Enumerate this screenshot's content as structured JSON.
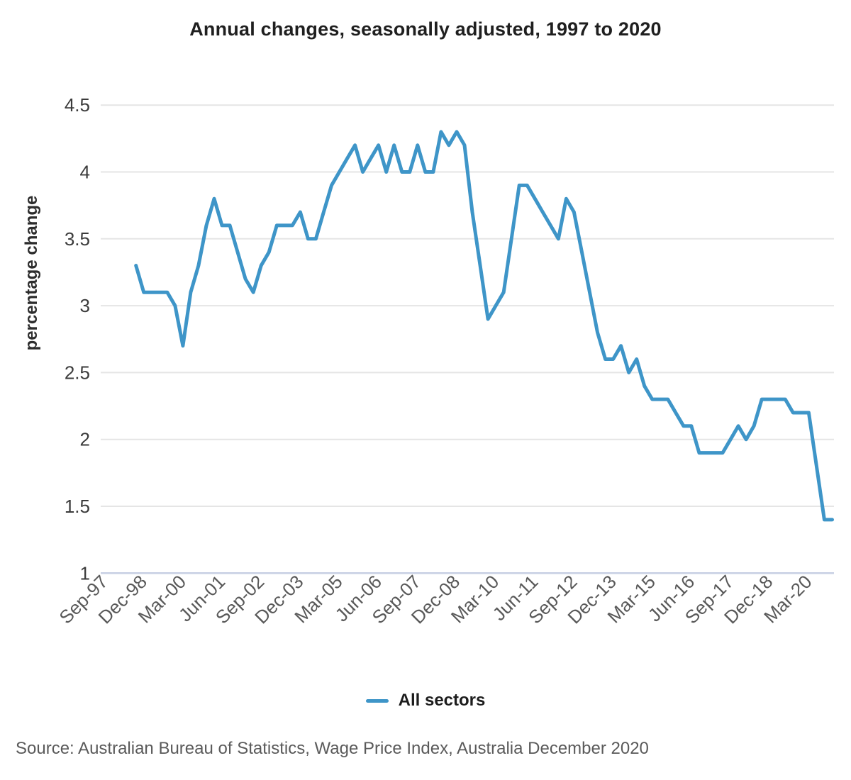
{
  "title": "Annual changes, seasonally adjusted, 1997 to 2020",
  "legend": {
    "label": "All sectors"
  },
  "source_note": "Source: Australian Bureau of Statistics, Wage Price Index, Australia December 2020",
  "y_axis": {
    "title": "percentage change",
    "ticks": [
      1,
      1.5,
      2,
      2.5,
      3,
      3.5,
      4,
      4.5
    ]
  },
  "x_axis": {
    "tick_labels": [
      "Sep-97",
      "Dec-98",
      "Mar-00",
      "Jun-01",
      "Sep-02",
      "Dec-03",
      "Mar-05",
      "Jun-06",
      "Sep-07",
      "Dec-08",
      "Mar-10",
      "Jun-11",
      "Sep-12",
      "Dec-13",
      "Mar-15",
      "Jun-16",
      "Sep-17",
      "Dec-18",
      "Mar-20"
    ]
  },
  "colors": {
    "line": "#3E95C8",
    "grid": "#e5e5e5",
    "axis_baseline": "#c7cfe3",
    "title_text": "#1f1f1f",
    "y_tick_text": "#3b3b3b",
    "x_tick_text": "#595959",
    "axis_title_text": "#2d2d2d",
    "source_text": "#5a5a5a"
  },
  "chart_data": {
    "type": "line",
    "title": "Annual changes, seasonally adjusted, 1997 to 2020",
    "xlabel": "",
    "ylabel": "percentage change",
    "ylim": [
      1,
      4.5
    ],
    "yticks": [
      1,
      1.5,
      2,
      2.5,
      3,
      3.5,
      4,
      4.5
    ],
    "xtick_labels": [
      "Sep-97",
      "Dec-98",
      "Mar-00",
      "Jun-01",
      "Sep-02",
      "Dec-03",
      "Mar-05",
      "Jun-06",
      "Sep-07",
      "Dec-08",
      "Mar-10",
      "Jun-11",
      "Sep-12",
      "Dec-13",
      "Mar-15",
      "Jun-16",
      "Sep-17",
      "Dec-18",
      "Mar-20"
    ],
    "grid": "horizontal",
    "legend_position": "bottom-center",
    "series": [
      {
        "name": "All sectors",
        "color": "#3E95C8",
        "x": [
          "Sep-98",
          "Dec-98",
          "Mar-99",
          "Jun-99",
          "Sep-99",
          "Dec-99",
          "Mar-00",
          "Jun-00",
          "Sep-00",
          "Dec-00",
          "Mar-01",
          "Jun-01",
          "Sep-01",
          "Dec-01",
          "Mar-02",
          "Jun-02",
          "Sep-02",
          "Dec-02",
          "Mar-03",
          "Jun-03",
          "Sep-03",
          "Dec-03",
          "Mar-04",
          "Jun-04",
          "Sep-04",
          "Dec-04",
          "Mar-05",
          "Jun-05",
          "Sep-05",
          "Dec-05",
          "Mar-06",
          "Jun-06",
          "Sep-06",
          "Dec-06",
          "Mar-07",
          "Jun-07",
          "Sep-07",
          "Dec-07",
          "Mar-08",
          "Jun-08",
          "Sep-08",
          "Dec-08",
          "Mar-09",
          "Jun-09",
          "Sep-09",
          "Dec-09",
          "Mar-10",
          "Jun-10",
          "Sep-10",
          "Dec-10",
          "Mar-11",
          "Jun-11",
          "Sep-11",
          "Dec-11",
          "Mar-12",
          "Jun-12",
          "Sep-12",
          "Dec-12",
          "Mar-13",
          "Jun-13",
          "Sep-13",
          "Dec-13",
          "Mar-14",
          "Jun-14",
          "Sep-14",
          "Dec-14",
          "Mar-15",
          "Jun-15",
          "Sep-15",
          "Dec-15",
          "Mar-16",
          "Jun-16",
          "Sep-16",
          "Dec-16",
          "Mar-17",
          "Jun-17",
          "Sep-17",
          "Dec-17",
          "Mar-18",
          "Jun-18",
          "Sep-18",
          "Dec-18",
          "Mar-19",
          "Jun-19",
          "Sep-19",
          "Dec-19",
          "Mar-20",
          "Jun-20",
          "Sep-20",
          "Dec-20"
        ],
        "values": [
          3.3,
          3.1,
          3.1,
          3.1,
          3.1,
          3.0,
          2.7,
          3.1,
          3.3,
          3.6,
          3.8,
          3.6,
          3.6,
          3.4,
          3.2,
          3.1,
          3.3,
          3.4,
          3.6,
          3.6,
          3.6,
          3.7,
          3.5,
          3.5,
          3.7,
          3.9,
          4.0,
          4.1,
          4.2,
          4.0,
          4.1,
          4.2,
          4.0,
          4.2,
          4.0,
          4.0,
          4.2,
          4.0,
          4.0,
          4.3,
          4.2,
          4.3,
          4.2,
          3.7,
          3.3,
          2.9,
          3.0,
          3.1,
          3.5,
          3.9,
          3.9,
          3.8,
          3.7,
          3.6,
          3.5,
          3.8,
          3.7,
          3.4,
          3.1,
          2.8,
          2.6,
          2.6,
          2.7,
          2.5,
          2.6,
          2.4,
          2.3,
          2.3,
          2.3,
          2.2,
          2.1,
          2.1,
          1.9,
          1.9,
          1.9,
          1.9,
          2.0,
          2.1,
          2.0,
          2.1,
          2.3,
          2.3,
          2.3,
          2.3,
          2.2,
          2.2,
          2.2,
          1.8,
          1.4,
          1.4
        ]
      }
    ]
  }
}
